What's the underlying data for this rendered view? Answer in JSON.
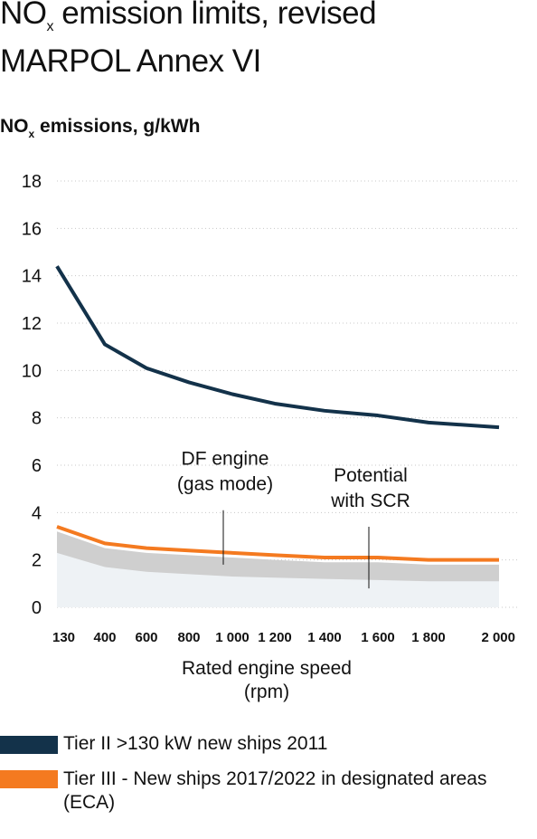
{
  "title_parts": {
    "a": "NO",
    "sub": "x",
    "b": " emission limits, revised",
    "line2": "MARPOL Annex VI"
  },
  "unit_parts": {
    "a": "NO",
    "sub": "x",
    "b": " emissions, g/kWh"
  },
  "chart_data": {
    "type": "line",
    "ylim": [
      0,
      18
    ],
    "yticks": [
      0,
      2,
      4,
      6,
      8,
      10,
      12,
      14,
      16,
      18
    ],
    "xtick_labels": [
      "130",
      "400",
      "600",
      "800",
      "1 000",
      "1 200",
      "1 400",
      "1 600",
      "1 800",
      "2 000"
    ],
    "xlabel": "Rated engine speed",
    "xlabel_unit": "(rpm)",
    "grid": true,
    "series": [
      {
        "name": "Tier II >130 kW new ships 2011",
        "color": "#13324a",
        "x": [
          130,
          400,
          600,
          800,
          1000,
          1200,
          1400,
          1600,
          1800,
          2000
        ],
        "values": [
          14.4,
          11.1,
          10.1,
          9.5,
          9.0,
          8.6,
          8.3,
          8.1,
          7.8,
          7.6
        ]
      },
      {
        "name": "Tier III - New ships 2017/2022 in designated areas (ECA)",
        "color": "#f47a20",
        "x": [
          130,
          400,
          600,
          800,
          1000,
          1200,
          1400,
          1600,
          1800,
          2000
        ],
        "values": [
          3.4,
          2.7,
          2.5,
          2.4,
          2.3,
          2.2,
          2.1,
          2.1,
          2.0,
          2.0
        ]
      }
    ],
    "bands": [
      {
        "label": "DF engine (gas mode)",
        "color": "#cfcfcf",
        "x": [
          130,
          400,
          600,
          800,
          1000,
          1200,
          1400,
          1600,
          1800,
          2000
        ],
        "values": [
          3.2,
          2.5,
          2.3,
          2.2,
          2.1,
          2.0,
          1.9,
          1.9,
          1.8,
          1.8
        ]
      },
      {
        "label": "Potential with SCR",
        "color": "#eef2f5",
        "x": [
          130,
          400,
          600,
          800,
          1000,
          1200,
          1400,
          1600,
          1800,
          2000
        ],
        "values": [
          2.3,
          1.7,
          1.5,
          1.4,
          1.3,
          1.25,
          1.2,
          1.15,
          1.1,
          1.1
        ]
      }
    ],
    "annotations": [
      {
        "lines": [
          "DF engine",
          "(gas mode)"
        ],
        "x": 1000,
        "y_top": 4.1,
        "y_bottom": 1.8
      },
      {
        "lines": [
          "Potential",
          "with SCR"
        ],
        "x": 1600,
        "y_top": 3.4,
        "y_bottom": 0.8
      }
    ]
  },
  "legend": [
    {
      "label": "Tier II >130 kW new ships 2011",
      "color": "#13324a"
    },
    {
      "label": "Tier III - New ships 2017/2022 in designated areas (ECA)",
      "color": "#f47a20"
    }
  ]
}
